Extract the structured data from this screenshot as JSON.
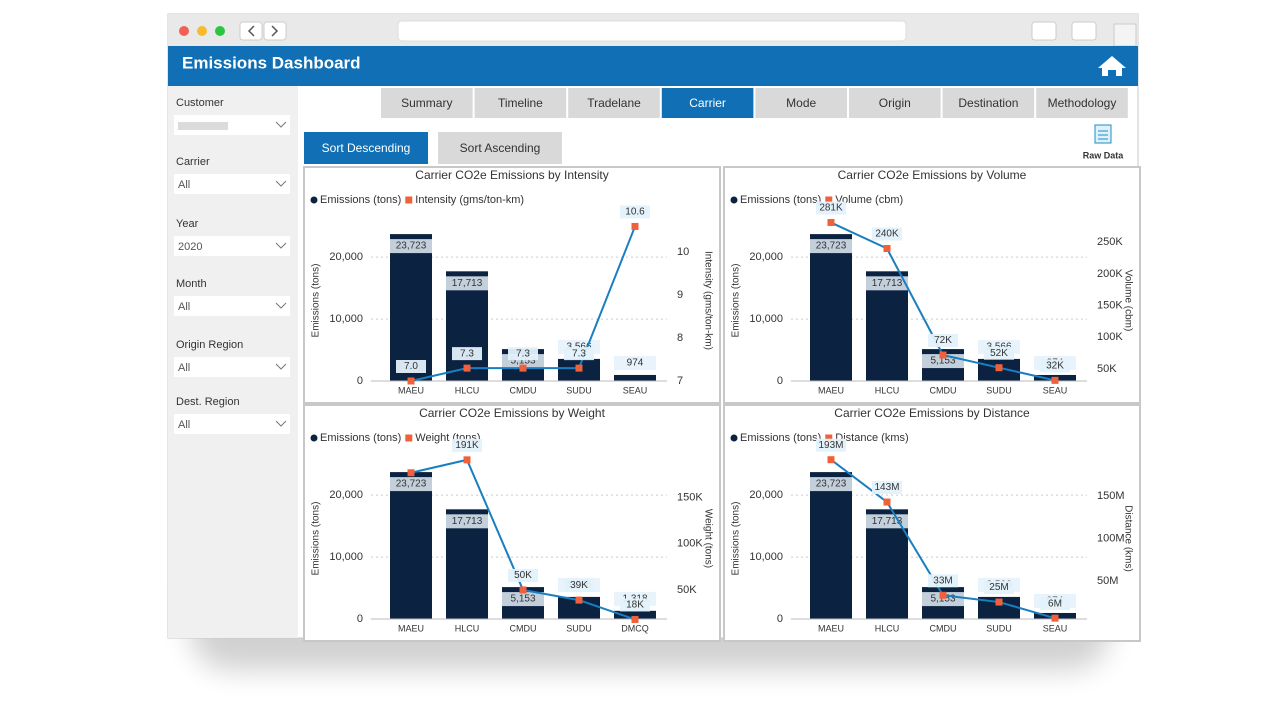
{
  "header": {
    "title": "Emissions Dashboard"
  },
  "sidebar": [
    {
      "label": "Customer"
    },
    {
      "label": "Carrier",
      "value": "All"
    },
    {
      "label": "Year",
      "value": "2020"
    },
    {
      "label": "Month",
      "value": "All"
    },
    {
      "label": "Origin Region",
      "value": "All"
    },
    {
      "label": "Dest. Region",
      "value": "All"
    }
  ],
  "tabs": [
    "Summary",
    "Timeline",
    "Tradelane",
    "Carrier",
    "Mode",
    "Origin",
    "Destination",
    "Methodology"
  ],
  "sort_buttons": [
    "Sort Descending",
    "Sort Ascending"
  ],
  "raw_data": "Raw Data",
  "chart_data": [
    {
      "type": "bar-line",
      "title": "Carrier CO2e Emissions by Intensity",
      "categories": [
        "MAEU",
        "HLCU",
        "CMDU",
        "SUDU",
        "SEAU"
      ],
      "series": [
        {
          "name": "Emissions (tons)",
          "color": "#0b2240",
          "values": [
            23723,
            17713,
            5153,
            3566,
            974
          ],
          "value_labels": [
            "23,723",
            "17,713",
            "5,153",
            "3,566",
            "974"
          ]
        },
        {
          "name": "Intensity (gms/ton-km)",
          "color": "#1a7fc1",
          "marker_color": "#f0603a",
          "axis": "y2",
          "values": [
            7.0,
            7.3,
            7.3,
            7.3,
            10.6
          ],
          "value_labels": [
            "7.0",
            "7.3",
            "7.3",
            "7.3",
            "10.6"
          ]
        }
      ],
      "ylabel": "Emissions (tons)",
      "y2label": "Intensity (gms/ton-km)",
      "ylim": [
        0,
        26000
      ],
      "yticks": [
        0,
        {
          "value": 10000,
          "label": "10,000"
        },
        {
          "value": 20000,
          "label": "20,000"
        }
      ],
      "y2lim": [
        7,
        10.75
      ],
      "y2ticks": [
        7,
        8,
        9,
        10
      ],
      "grid": true
    },
    {
      "type": "bar-line",
      "title": "Carrier CO2e Emissions by Volume",
      "categories": [
        "MAEU",
        "HLCU",
        "CMDU",
        "SUDU",
        "SEAU"
      ],
      "series": [
        {
          "name": "Emissions (tons)",
          "color": "#0b2240",
          "values": [
            23723,
            17713,
            5153,
            3566,
            974
          ],
          "value_labels": [
            "23,723",
            "17,713",
            "5,153",
            "3,566",
            "974"
          ]
        },
        {
          "name": "Volume (cbm)",
          "color": "#1a7fc1",
          "marker_color": "#f0603a",
          "axis": "y2",
          "values": [
            281000,
            240000,
            72000,
            52000,
            32000
          ],
          "value_labels": [
            "281K",
            "240K",
            "72K",
            "52K",
            "32K"
          ]
        }
      ],
      "ylabel": "Emissions (tons)",
      "y2label": "Volume (cbm)",
      "ylim": [
        0,
        26000
      ],
      "yticks": [
        0,
        {
          "value": 10000,
          "label": "10,000"
        },
        {
          "value": 20000,
          "label": "20,000"
        }
      ],
      "y2lim": [
        31000,
        285000
      ],
      "y2ticks": [
        {
          "value": 50000,
          "label": "50K"
        },
        {
          "value": 100000,
          "label": "100K"
        },
        {
          "value": 150000,
          "label": "150K"
        },
        {
          "value": 200000,
          "label": "200K"
        },
        {
          "value": 250000,
          "label": "250K"
        }
      ],
      "grid": true
    },
    {
      "type": "bar-line",
      "title": "Carrier CO2e Emissions by Weight",
      "categories": [
        "MAEU",
        "HLCU",
        "CMDU",
        "SUDU",
        "DMCQ"
      ],
      "series": [
        {
          "name": "Emissions (tons)",
          "color": "#0b2240",
          "values": [
            23723,
            17713,
            5153,
            3566,
            1318
          ],
          "value_labels": [
            "23,723",
            "17,713",
            "5,153",
            "3,566",
            "1,318"
          ]
        },
        {
          "name": "Weight (tons)",
          "color": "#1a7fc1",
          "marker_color": "#f0603a",
          "axis": "y2",
          "values": [
            177000,
            191000,
            50000,
            39000,
            18000
          ],
          "value_labels": [
            null,
            "191K",
            "50K",
            "39K",
            "18K"
          ]
        }
      ],
      "ylabel": "Emissions (tons)",
      "y2label": "Weight (tons)",
      "ylim": [
        0,
        26000
      ],
      "yticks": [
        0,
        {
          "value": 10000,
          "label": "10,000"
        },
        {
          "value": 20000,
          "label": "20,000"
        }
      ],
      "y2lim": [
        18500,
        193000
      ],
      "y2ticks": [
        {
          "value": 50000,
          "label": "50K"
        },
        {
          "value": 100000,
          "label": "100K"
        },
        {
          "value": 150000,
          "label": "150K"
        }
      ],
      "grid": true
    },
    {
      "type": "bar-line",
      "title": "Carrier CO2e Emissions by Distance",
      "categories": [
        "MAEU",
        "HLCU",
        "CMDU",
        "SUDU",
        "SEAU"
      ],
      "series": [
        {
          "name": "Emissions (tons)",
          "color": "#0b2240",
          "values": [
            23723,
            17713,
            5153,
            3566,
            974
          ],
          "value_labels": [
            "23,723",
            "17,713",
            "5,153",
            "3,566",
            "974"
          ]
        },
        {
          "name": "Distance (kms)",
          "color": "#1a7fc1",
          "marker_color": "#f0603a",
          "axis": "y2",
          "values": [
            193000000,
            143000000,
            33000000,
            25000000,
            6000000
          ],
          "value_labels": [
            "193M",
            "143M",
            "33M",
            "25M",
            "6M"
          ]
        }
      ],
      "ylabel": "Emissions (tons)",
      "y2label": "Distance (kms)",
      "ylim": [
        0,
        26000
      ],
      "yticks": [
        0,
        {
          "value": 10000,
          "label": "10,000"
        },
        {
          "value": 20000,
          "label": "20,000"
        }
      ],
      "y2lim": [
        5000000,
        195000000
      ],
      "y2ticks": [
        {
          "value": 50000000,
          "label": "50M"
        },
        {
          "value": 100000000,
          "label": "100M"
        },
        {
          "value": 150000000,
          "label": "150M"
        }
      ],
      "grid": true
    }
  ]
}
